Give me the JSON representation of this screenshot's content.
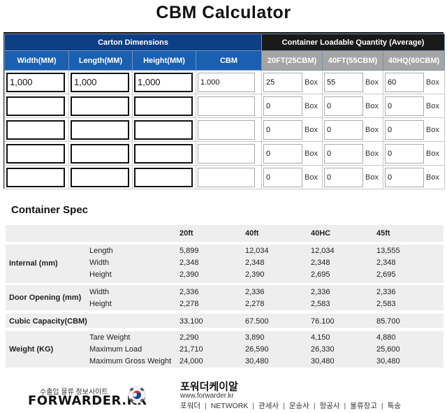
{
  "page": {
    "title": "CBM Calculator"
  },
  "calculator": {
    "carton_group_label": "Carton Dimensions",
    "container_group_label": "Container Loadable Quantity (Average)",
    "columns": {
      "width": "Width(MM)",
      "length": "Length(MM)",
      "height": "Height(MM)",
      "cbm": "CBM",
      "c20": "20FT(25CBM)",
      "c40": "40FT(55CBM)",
      "c40hq": "40HQ(60CBM)"
    },
    "box_label": "Box",
    "rows": [
      {
        "width": "1,000",
        "length": "1,000",
        "height": "1,000",
        "cbm": "1.000",
        "q20": "25",
        "q40": "55",
        "q40hq": "60"
      },
      {
        "width": "",
        "length": "",
        "height": "",
        "cbm": "",
        "q20": "0",
        "q40": "0",
        "q40hq": "0"
      },
      {
        "width": "",
        "length": "",
        "height": "",
        "cbm": "",
        "q20": "0",
        "q40": "0",
        "q40hq": "0"
      },
      {
        "width": "",
        "length": "",
        "height": "",
        "cbm": "",
        "q20": "0",
        "q40": "0",
        "q40hq": "0"
      },
      {
        "width": "",
        "length": "",
        "height": "",
        "cbm": "",
        "q20": "0",
        "q40": "0",
        "q40hq": "0"
      }
    ]
  },
  "spec": {
    "title": "Container Spec",
    "headers": [
      "20ft",
      "40ft",
      "40HC",
      "45ft"
    ],
    "internal": {
      "label": "Internal (mm)",
      "rows": [
        {
          "name": "Length",
          "values": [
            "5,899",
            "12,034",
            "12,034",
            "13,555"
          ]
        },
        {
          "name": "Width",
          "values": [
            "2,348",
            "2,348",
            "2,348",
            "2,348"
          ]
        },
        {
          "name": "Height",
          "values": [
            "2,390",
            "2,390",
            "2,695",
            "2,695"
          ]
        }
      ]
    },
    "door": {
      "label": "Door Opening (mm)",
      "rows": [
        {
          "name": "Width",
          "values": [
            "2,336",
            "2,336",
            "2,336",
            "2,336"
          ]
        },
        {
          "name": "Height",
          "values": [
            "2,278",
            "2,278",
            "2,583",
            "2,583"
          ]
        }
      ]
    },
    "cubic": {
      "label": "Cubic Capacity(CBM)",
      "values": [
        "33.100",
        "67.500",
        "76.100",
        "85.700"
      ]
    },
    "weight": {
      "label": "Weight (KG)",
      "rows": [
        {
          "name": "Tare Weight",
          "values": [
            "2,290",
            "3,890",
            "4,150",
            "4,880"
          ]
        },
        {
          "name": "Maximum Load",
          "values": [
            "21,710",
            "26,590",
            "26,330",
            "25,600"
          ]
        },
        {
          "name": "Maximum Gross Weight",
          "values": [
            "24,000",
            "30,480",
            "30,480",
            "30,480"
          ]
        }
      ]
    }
  },
  "footer": {
    "subtitle": "수출입 물류 정보사이트",
    "logo": "FORWARDER.KR",
    "site_name": "포워더케이알",
    "url": "www.forwarder.kr",
    "links": [
      "포워더",
      "NETWORK",
      "관세사",
      "운송사",
      "항공사",
      "물류창고",
      "특송"
    ]
  },
  "colors": {
    "carton_header": "#0d3f86",
    "column_header": "#1b5fb0",
    "container_header": "#1a1a1a",
    "container_column": "#a5a5a5"
  }
}
